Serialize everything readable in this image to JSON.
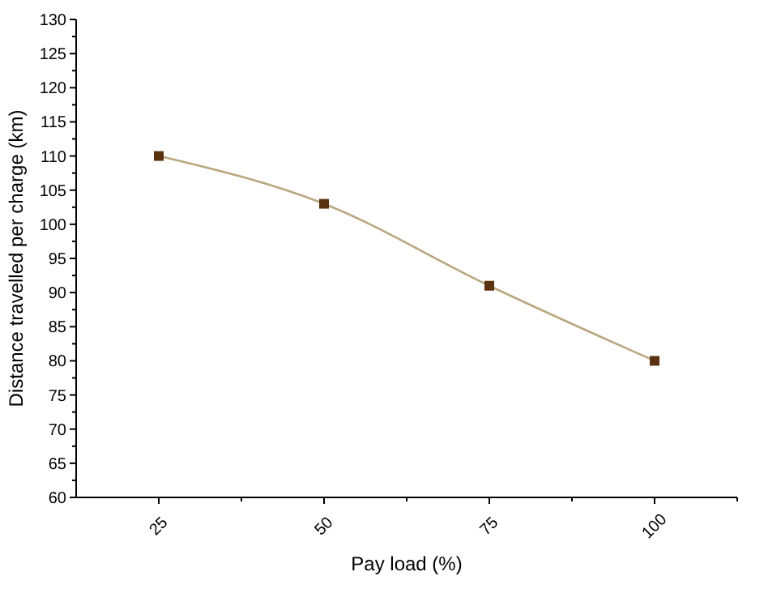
{
  "chart_data": {
    "type": "line",
    "xlabel": "Pay load (%)",
    "ylabel": "Distance travelled per charge (km)",
    "x": [
      25,
      50,
      75,
      100
    ],
    "series": [
      {
        "color": "#b8a77f",
        "colors": [
          "#5a3210",
          "#5a3210",
          "#5a3210",
          "#5a3210"
        ],
        "values": [
          110,
          103,
          91,
          80
        ]
      }
    ],
    "marker": "square",
    "grid": false,
    "xlim": [
      12.5,
      112.5
    ],
    "xticks": [
      25,
      {
        "value": 37.5,
        "label": null
      },
      50,
      {
        "value": 62.5,
        "label": null
      },
      75,
      {
        "value": 87.5,
        "label": null
      },
      100,
      {
        "value": 112.5,
        "label": null
      }
    ],
    "ylim": [
      60,
      130
    ],
    "yticks": [
      60,
      65,
      70,
      75,
      80,
      85,
      90,
      95,
      100,
      105,
      110,
      115,
      120,
      125,
      130
    ]
  }
}
